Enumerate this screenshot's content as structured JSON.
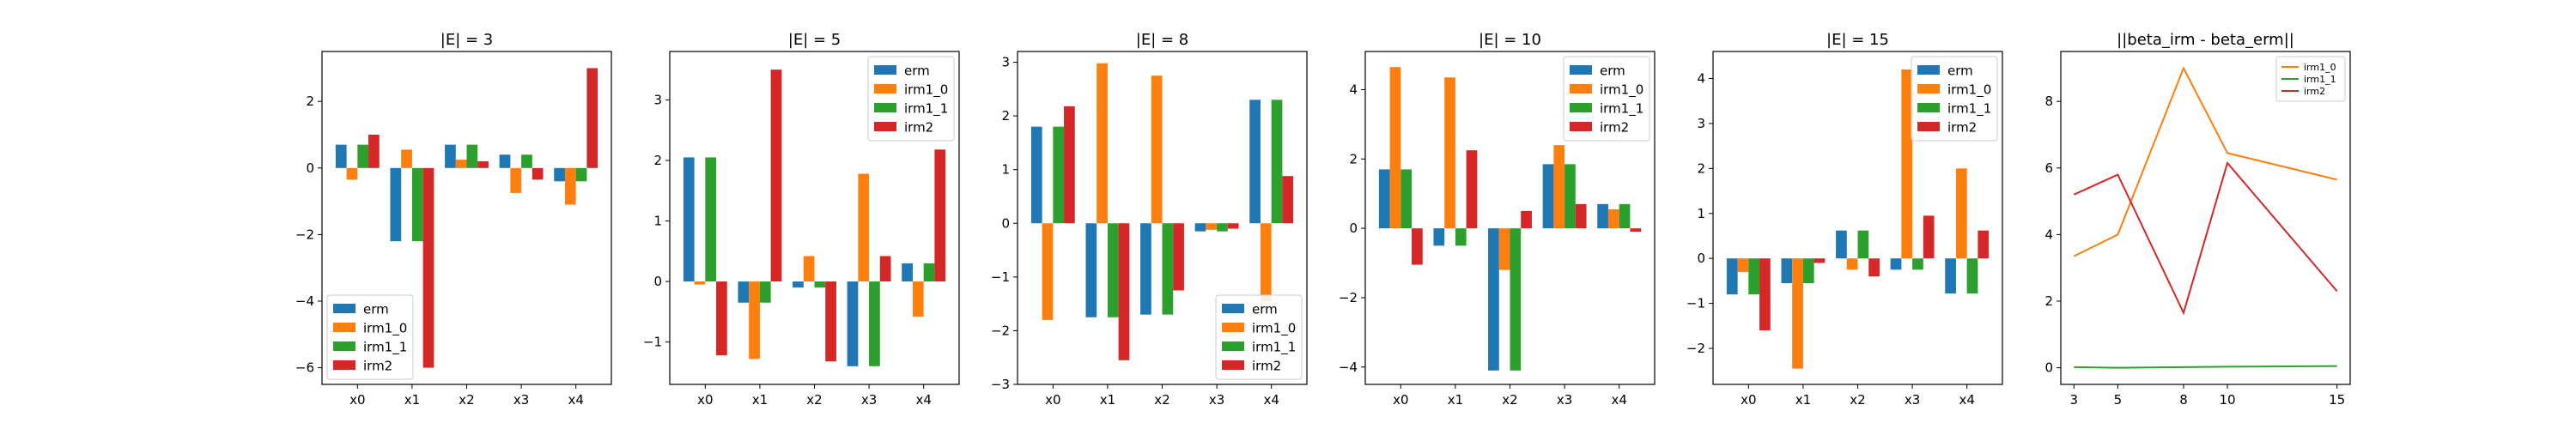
{
  "colors": {
    "erm": "#1f77b4",
    "irm1_0": "#ff7f0e",
    "irm1_1": "#2ca02c",
    "irm2": "#d62728"
  },
  "chart_data": [
    {
      "type": "bar",
      "title": "|E| = 3",
      "categories": [
        "x0",
        "x1",
        "x2",
        "x3",
        "x4"
      ],
      "ylim": [
        -6.5,
        3.5
      ],
      "yticks": [
        -6,
        -4,
        -2,
        0,
        2
      ],
      "legend": "lower-left",
      "series": [
        {
          "name": "erm",
          "values": [
            0.7,
            -2.2,
            0.7,
            0.4,
            -0.4
          ]
        },
        {
          "name": "irm1_0",
          "values": [
            -0.35,
            0.55,
            0.25,
            -0.75,
            -1.1
          ]
        },
        {
          "name": "irm1_1",
          "values": [
            0.7,
            -2.2,
            0.7,
            0.4,
            -0.4
          ]
        },
        {
          "name": "irm2",
          "values": [
            1.0,
            -6.0,
            0.2,
            -0.35,
            3.0
          ]
        }
      ]
    },
    {
      "type": "bar",
      "title": "|E| = 5",
      "categories": [
        "x0",
        "x1",
        "x2",
        "x3",
        "x4"
      ],
      "ylim": [
        -1.7,
        3.8
      ],
      "yticks": [
        -1,
        0,
        1,
        2,
        3
      ],
      "legend": "top-right",
      "series": [
        {
          "name": "erm",
          "values": [
            2.05,
            -0.35,
            -0.1,
            -1.4,
            0.3
          ]
        },
        {
          "name": "irm1_0",
          "values": [
            -0.05,
            -1.28,
            0.42,
            1.78,
            -0.58
          ]
        },
        {
          "name": "irm1_1",
          "values": [
            2.05,
            -0.35,
            -0.1,
            -1.4,
            0.3
          ]
        },
        {
          "name": "irm2",
          "values": [
            -1.22,
            3.5,
            -1.32,
            0.42,
            2.18
          ]
        }
      ]
    },
    {
      "type": "bar",
      "title": "|E| = 8",
      "categories": [
        "x0",
        "x1",
        "x2",
        "x3",
        "x4"
      ],
      "ylim": [
        -3,
        3.2
      ],
      "yticks": [
        -3,
        -2,
        -1,
        0,
        1,
        2,
        3
      ],
      "legend": "lower-right",
      "series": [
        {
          "name": "erm",
          "values": [
            1.8,
            -1.75,
            -1.7,
            -0.15,
            2.3
          ]
        },
        {
          "name": "irm1_0",
          "values": [
            -1.8,
            2.98,
            2.75,
            -0.12,
            -1.45
          ]
        },
        {
          "name": "irm1_1",
          "values": [
            1.8,
            -1.75,
            -1.7,
            -0.15,
            2.3
          ]
        },
        {
          "name": "irm2",
          "values": [
            2.18,
            -2.55,
            -1.25,
            -0.1,
            0.88
          ]
        }
      ]
    },
    {
      "type": "bar",
      "title": "|E| = 10",
      "categories": [
        "x0",
        "x1",
        "x2",
        "x3",
        "x4"
      ],
      "ylim": [
        -4.5,
        5.1
      ],
      "yticks": [
        -4,
        -2,
        0,
        2,
        4
      ],
      "legend": "top-right",
      "series": [
        {
          "name": "erm",
          "values": [
            1.7,
            -0.5,
            -4.1,
            1.85,
            0.7
          ]
        },
        {
          "name": "irm1_0",
          "values": [
            4.65,
            4.35,
            -1.2,
            2.4,
            0.55
          ]
        },
        {
          "name": "irm1_1",
          "values": [
            1.7,
            -0.5,
            -4.1,
            1.85,
            0.7
          ]
        },
        {
          "name": "irm2",
          "values": [
            -1.05,
            2.25,
            0.5,
            0.7,
            -0.1
          ]
        }
      ]
    },
    {
      "type": "bar",
      "title": "|E| = 15",
      "categories": [
        "x0",
        "x1",
        "x2",
        "x3",
        "x4"
      ],
      "ylim": [
        -2.8,
        4.6
      ],
      "yticks": [
        -2,
        -1,
        0,
        1,
        2,
        3,
        4
      ],
      "legend": "top-right",
      "series": [
        {
          "name": "erm",
          "values": [
            -0.8,
            -0.55,
            0.62,
            -0.25,
            -0.78
          ]
        },
        {
          "name": "irm1_0",
          "values": [
            -0.3,
            -2.45,
            -0.25,
            4.2,
            2.0
          ]
        },
        {
          "name": "irm1_1",
          "values": [
            -0.8,
            -0.55,
            0.62,
            -0.25,
            -0.78
          ]
        },
        {
          "name": "irm2",
          "values": [
            -1.6,
            -0.1,
            -0.4,
            0.95,
            0.62
          ]
        }
      ]
    },
    {
      "type": "line",
      "title": "||beta_irm - beta_erm||",
      "x": [
        3,
        5,
        8,
        10,
        15
      ],
      "xticks": [
        3,
        5,
        8,
        10,
        15
      ],
      "ylim": [
        -0.5,
        9.5
      ],
      "yticks": [
        0,
        2,
        4,
        6,
        8
      ],
      "legend": "top-right",
      "series": [
        {
          "name": "irm1_0",
          "values": [
            3.35,
            4.0,
            9.0,
            6.45,
            5.65
          ]
        },
        {
          "name": "irm1_1",
          "values": [
            0.02,
            0.0,
            0.02,
            0.03,
            0.05
          ]
        },
        {
          "name": "irm2",
          "values": [
            5.2,
            5.8,
            1.65,
            6.15,
            2.3
          ]
        }
      ]
    }
  ]
}
